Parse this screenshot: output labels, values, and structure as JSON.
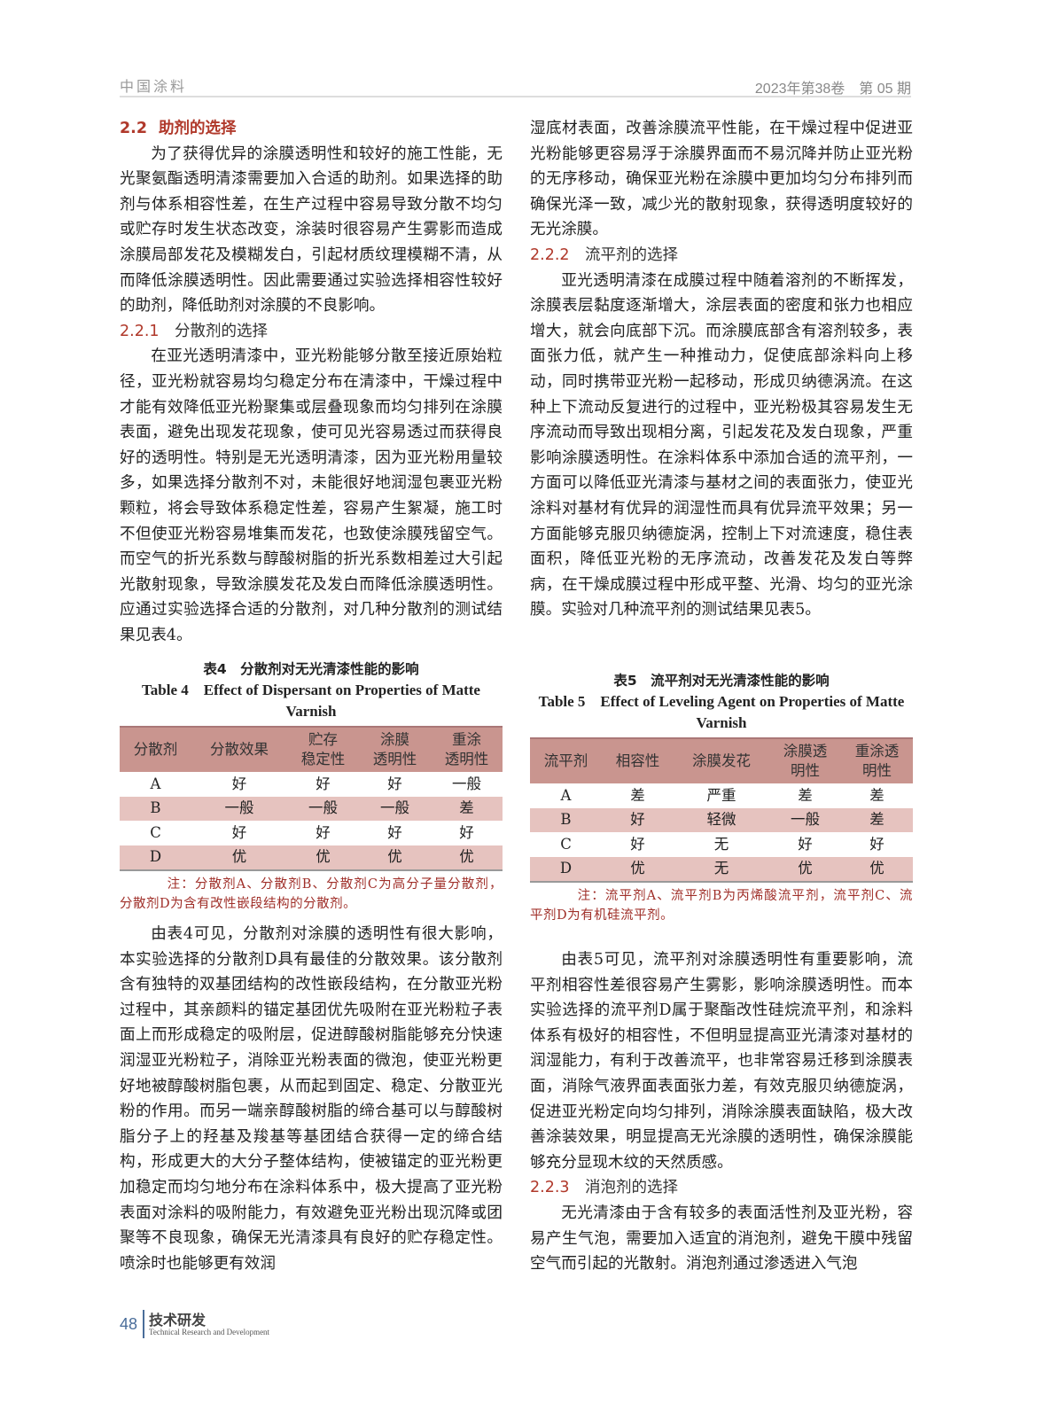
{
  "header": {
    "journal": "中国涂料",
    "issue": "2023年第38卷　第 05 期"
  },
  "left": {
    "h1": {
      "num": "2.2",
      "title": "助剂的选择"
    },
    "p1": "为了获得优异的涂膜透明性和较好的施工性能，无光聚氨酯透明清漆需要加入合适的助剂。如果选择的助剂与体系相容性差，在生产过程中容易导致分散不均匀或贮存时发生状态改变，涂装时很容易产生雾影而造成涂膜局部发花及模糊发白，引起材质纹理模糊不清，从而降低涂膜透明性。因此需要通过实验选择相容性较好的助剂，降低助剂对涂膜的不良影响。",
    "h2": {
      "num": "2.2.1",
      "title": "分散剂的选择"
    },
    "p2": "在亚光透明清漆中，亚光粉能够分散至接近原始粒径，亚光粉就容易均匀稳定分布在清漆中，干燥过程中才能有效降低亚光粉聚集或层叠现象而均匀排列在涂膜表面，避免出现发花现象，使可见光容易透过而获得良好的透明性。特别是无光透明清漆，因为亚光粉用量较多，如果选择分散剂不对，未能很好地润湿包裹亚光粉颗粒，将会导致体系稳定性差，容易产生絮凝，施工时不但使亚光粉容易堆集而发花，也致使涂膜残留空气。而空气的折光系数与醇酸树脂的折光系数相差过大引起光散射现象，导致涂膜发花及发白而降低涂膜透明性。应通过实验选择合适的分散剂，对几种分散剂的测试结果见表4。",
    "table4": {
      "caption_zh": "表4　分散剂对无光清漆性能的影响",
      "caption_en": "Table 4　Effect of Dispersant on Properties of Matte Varnish",
      "headers": [
        "分散剂",
        "分散效果",
        "贮存\n稳定性",
        "涂膜\n透明性",
        "重涂\n透明性"
      ],
      "rows": [
        [
          "A",
          "好",
          "好",
          "好",
          "一般"
        ],
        [
          "B",
          "一般",
          "一般",
          "一般",
          "差"
        ],
        [
          "C",
          "好",
          "好",
          "好",
          "好"
        ],
        [
          "D",
          "优",
          "优",
          "优",
          "优"
        ]
      ],
      "note": "注：分散剂A、分散剂B、分散剂C为高分子量分散剂，分散剂D为含有改性嵌段结构的分散剂。"
    },
    "p3": "由表4可见，分散剂对涂膜的透明性有很大影响，本实验选择的分散剂D具有最佳的分散效果。该分散剂含有独特的双基团结构的改性嵌段结构，在分散亚光粉过程中，其亲颜料的锚定基团优先吸附在亚光粉粒子表面上而形成稳定的吸附层，促进醇酸树脂能够充分快速润湿亚光粉粒子，消除亚光粉表面的微泡，使亚光粉更好地被醇酸树脂包裹，从而起到固定、稳定、分散亚光粉的作用。而另一端亲醇酸树脂的缔合基可以与醇酸树脂分子上的羟基及羧基等基团结合获得一定的缔合结构，形成更大的大分子整体结构，使被锚定的亚光粉更加稳定而均匀地分布在涂料体系中，极大提高了亚光粉表面对涂料的吸附能力，有效避免亚光粉出现沉降或团聚等不良现象，确保无光清漆具有良好的贮存稳定性。喷涂时也能够更有效润"
  },
  "right": {
    "p0": "湿底材表面，改善涂膜流平性能，在干燥过程中促进亚光粉能够更容易浮于涂膜界面而不易沉降并防止亚光粉的无序移动，确保亚光粉在涂膜中更加均匀分布排列而确保光泽一致，减少光的散射现象，获得透明度较好的无光涂膜。",
    "h1": {
      "num": "2.2.2",
      "title": "流平剂的选择"
    },
    "p1": "亚光透明清漆在成膜过程中随着溶剂的不断挥发，涂膜表层黏度逐渐增大，涂层表面的密度和张力也相应增大，就会向底部下沉。而涂膜底部含有溶剂较多，表面张力低，就产生一种推动力，促使底部涂料向上移动，同时携带亚光粉一起移动，形成贝纳德涡流。在这种上下流动反复进行的过程中，亚光粉极其容易发生无序流动而导致出现相分离，引起发花及发白现象，严重影响涂膜透明性。在涂料体系中添加合适的流平剂，一方面可以降低亚光清漆与基材之间的表面张力，使亚光涂料对基材有优异的润湿性而具有优异流平效果；另一方面能够克服贝纳德旋涡，控制上下对流速度，稳住表面积，降低亚光粉的无序流动，改善发花及发白等弊病，在干燥成膜过程中形成平整、光滑、均匀的亚光涂膜。实验对几种流平剂的测试结果见表5。",
    "table5": {
      "caption_zh": "表5　流平剂对无光清漆性能的影响",
      "caption_en": "Table 5　Effect of Leveling Agent on Properties of Matte Varnish",
      "headers": [
        "流平剂",
        "相容性",
        "涂膜发花",
        "涂膜透\n明性",
        "重涂透\n明性"
      ],
      "rows": [
        [
          "A",
          "差",
          "严重",
          "差",
          "差"
        ],
        [
          "B",
          "好",
          "轻微",
          "一般",
          "差"
        ],
        [
          "C",
          "好",
          "无",
          "好",
          "好"
        ],
        [
          "D",
          "优",
          "无",
          "优",
          "优"
        ]
      ],
      "note": "注：流平剂A、流平剂B为丙烯酸流平剂，流平剂C、流平剂D为有机硅流平剂。"
    },
    "p2": "由表5可见，流平剂对涂膜透明性有重要影响，流平剂相容性差很容易产生雾影，影响涂膜透明性。而本实验选择的流平剂D属于聚酯改性硅烷流平剂，和涂料体系有极好的相容性，不但明显提高亚光清漆对基材的润湿能力，有利于改善流平，也非常容易迁移到涂膜表面，消除气液界面表面张力差，有效克服贝纳德旋涡，促进亚光粉定向均匀排列，消除涂膜表面缺陷，极大改善涂装效果，明显提高无光涂膜的透明性，确保涂膜能够充分显现木纹的天然质感。",
    "h2": {
      "num": "2.2.3",
      "title": "消泡剂的选择"
    },
    "p3": "无光清漆由于含有较多的表面活性剂及亚光粉，容易产生气泡，需要加入适宜的消泡剂，避免干膜中残留空气而引起的光散射。消泡剂通过渗透进入气泡"
  },
  "footer": {
    "page": "48",
    "section_zh": "技术研发",
    "section_en": "Technical Research and Development"
  },
  "colors": {
    "heading": "#b0392b",
    "table_header": "#c9958f",
    "table_alt_row": "#e6c3bf",
    "note": "#a0302a",
    "footer_accent": "#4a6d9a"
  }
}
